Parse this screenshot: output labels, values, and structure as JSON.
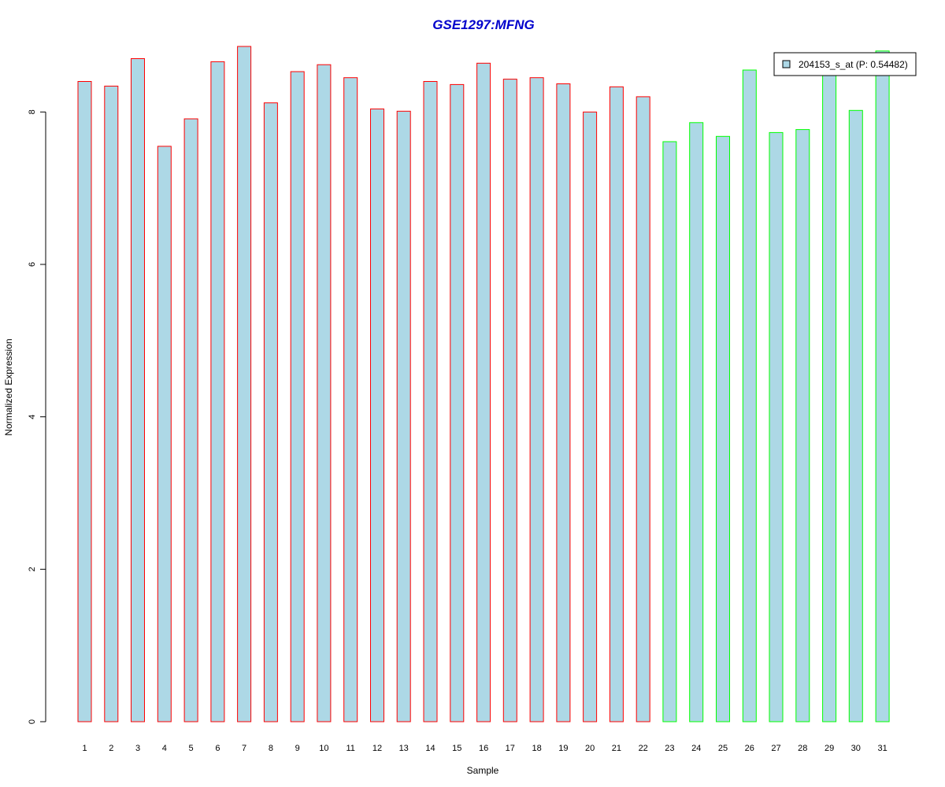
{
  "chart_data": {
    "type": "bar",
    "title": "GSE1297:MFNG",
    "xlabel": "Sample",
    "ylabel": "Normalized Expression",
    "categories": [
      "1",
      "2",
      "3",
      "4",
      "5",
      "6",
      "7",
      "8",
      "9",
      "10",
      "11",
      "12",
      "13",
      "14",
      "15",
      "16",
      "17",
      "18",
      "19",
      "20",
      "21",
      "22",
      "23",
      "24",
      "25",
      "26",
      "27",
      "28",
      "29",
      "30",
      "31"
    ],
    "values": [
      8.4,
      8.34,
      8.7,
      7.55,
      7.91,
      8.66,
      8.86,
      8.12,
      8.53,
      8.62,
      8.45,
      8.04,
      8.01,
      8.4,
      8.36,
      8.64,
      8.43,
      8.45,
      8.37,
      8.0,
      8.33,
      8.2,
      7.61,
      7.86,
      7.68,
      8.55,
      7.73,
      7.77,
      8.58,
      8.02,
      8.8
    ],
    "group_colors": [
      "#ff0000",
      "#ff0000",
      "#ff0000",
      "#ff0000",
      "#ff0000",
      "#ff0000",
      "#ff0000",
      "#ff0000",
      "#ff0000",
      "#ff0000",
      "#ff0000",
      "#ff0000",
      "#ff0000",
      "#ff0000",
      "#ff0000",
      "#ff0000",
      "#ff0000",
      "#ff0000",
      "#ff0000",
      "#ff0000",
      "#ff0000",
      "#ff0000",
      "#00ff00",
      "#00ff00",
      "#00ff00",
      "#00ff00",
      "#00ff00",
      "#00ff00",
      "#00ff00",
      "#00ff00",
      "#00ff00"
    ],
    "bar_fill": "#add8e6",
    "title_color": "#0000cc",
    "ylim": [
      0,
      8.86
    ],
    "yticks": [
      0,
      2,
      4,
      6,
      8
    ],
    "grid": false,
    "legend": {
      "placement": "top-right",
      "label": "204153_s_at (P: 0.54482)",
      "swatch_color": "#add8e6"
    }
  }
}
